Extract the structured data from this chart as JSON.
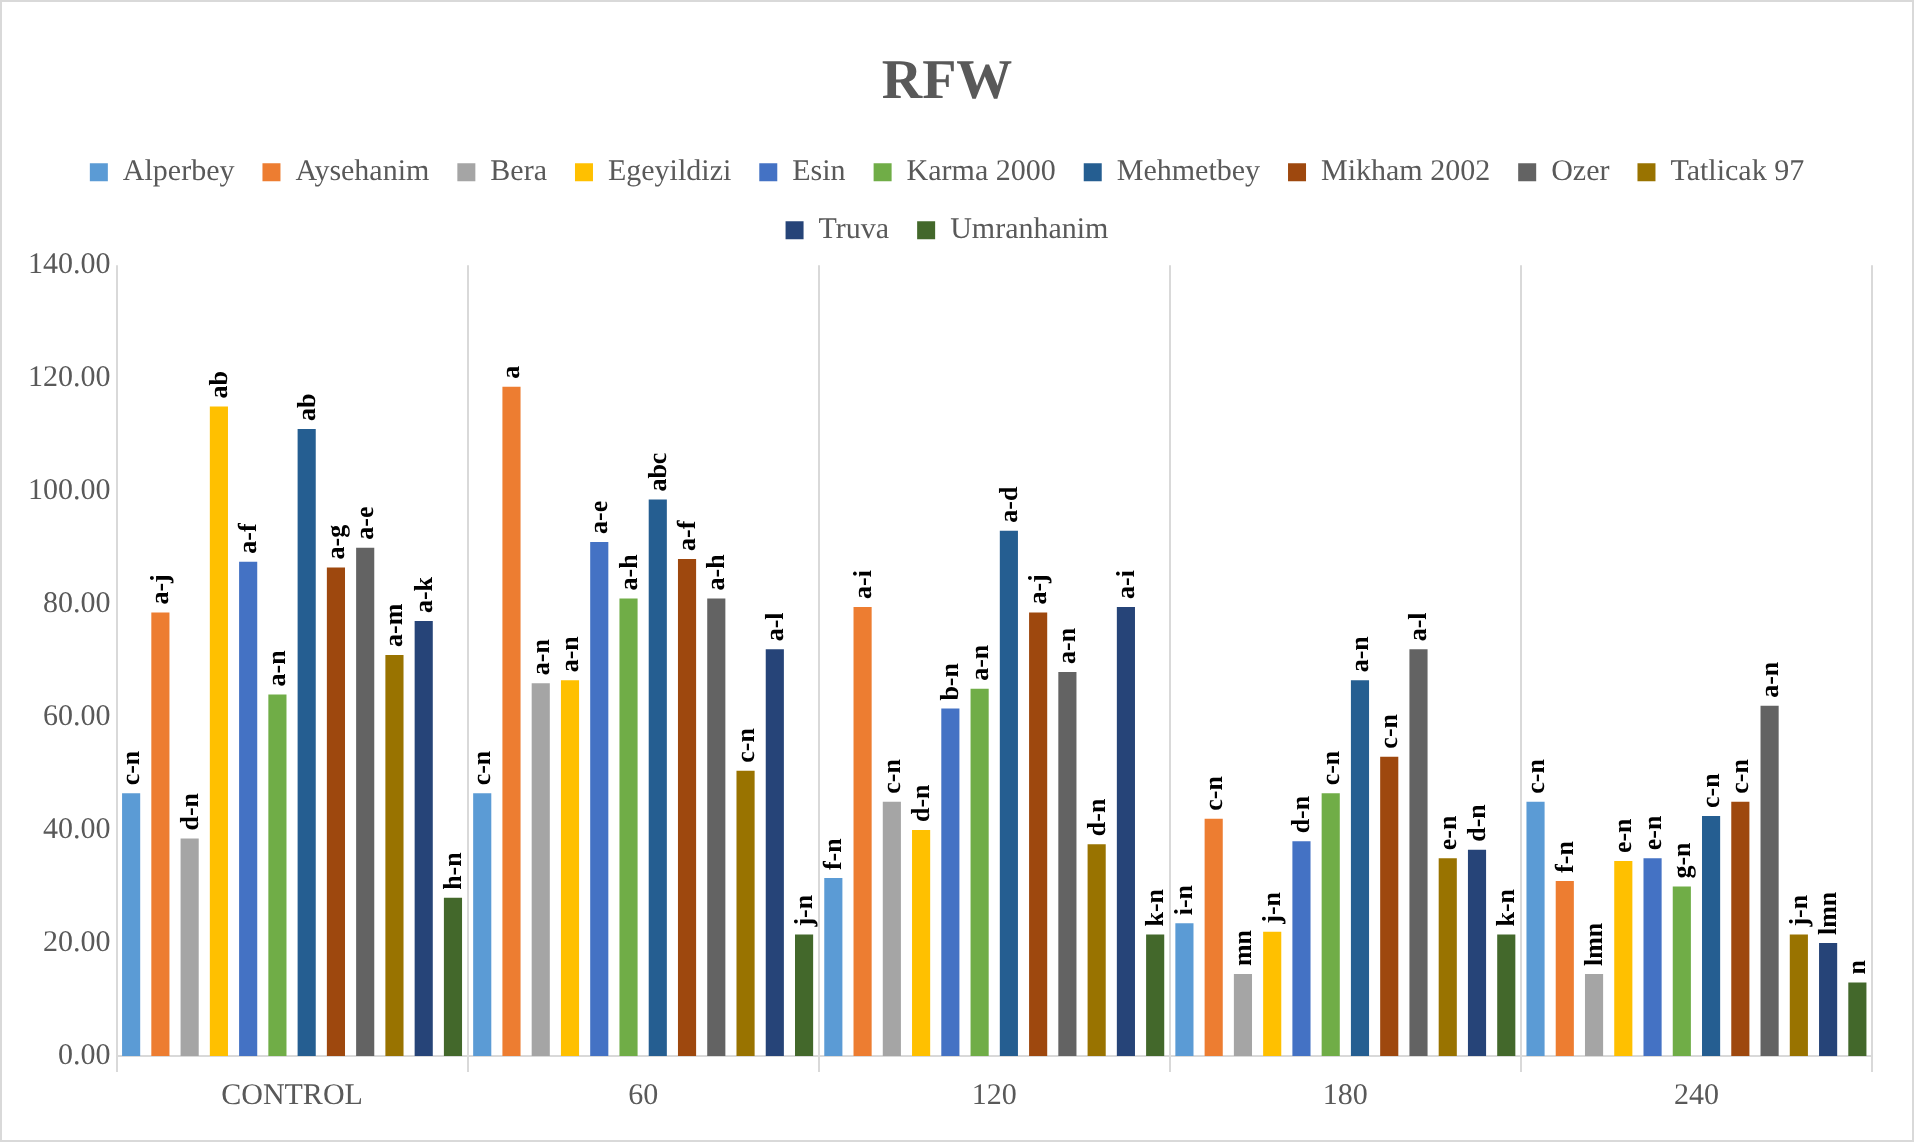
{
  "chart_data": {
    "type": "bar",
    "title": "RFW",
    "categories": [
      "CONTROL",
      "60",
      "120",
      "180",
      "240"
    ],
    "ylim": [
      0,
      140
    ],
    "yticks": [
      {
        "value": 0,
        "label": "0.00"
      },
      {
        "value": 20,
        "label": "20.00"
      },
      {
        "value": 40,
        "label": "40.00"
      },
      {
        "value": 60,
        "label": "60.00"
      },
      {
        "value": 80,
        "label": "80.00"
      },
      {
        "value": 100,
        "label": "100.00"
      },
      {
        "value": 120,
        "label": "120.00"
      },
      {
        "value": 140,
        "label": "140.00"
      }
    ],
    "grid": "x",
    "legend": "top",
    "series": [
      {
        "name": "Alperbey",
        "color": "#5b9bd5",
        "values": [
          46.5,
          46.5,
          31.5,
          23.5,
          45
        ],
        "value_labels": [
          "c-n",
          "c-n",
          "f-n",
          "i-n",
          "c-n"
        ]
      },
      {
        "name": "Aysehanim",
        "color": "#ed7d31",
        "values": [
          78.5,
          118.5,
          79.5,
          42,
          31
        ],
        "value_labels": [
          "a-j",
          "a",
          "a-i",
          "c-n",
          "f-n"
        ]
      },
      {
        "name": "Bera",
        "color": "#a5a5a5",
        "values": [
          38.5,
          66,
          45,
          14.5,
          14.5
        ],
        "value_labels": [
          "d-n",
          "a-n",
          "c-n",
          "mn",
          "lmn"
        ]
      },
      {
        "name": "Egeyildizi",
        "color": "#ffc000",
        "values": [
          115,
          66.5,
          40,
          22,
          34.5
        ],
        "value_labels": [
          "ab",
          "a-n",
          "d-n",
          "j-n",
          "e-n"
        ]
      },
      {
        "name": "Esin",
        "color": "#4472c4",
        "values": [
          87.5,
          91,
          61.5,
          38,
          35
        ],
        "value_labels": [
          "a-f",
          "a-e",
          "b-n",
          "d-n",
          "e-n"
        ]
      },
      {
        "name": "Karma 2000",
        "color": "#70ad47",
        "values": [
          64,
          81,
          65,
          46.5,
          30
        ],
        "value_labels": [
          "a-n",
          "a-h",
          "a-n",
          "c-n",
          "g-n"
        ]
      },
      {
        "name": "Mehmetbey",
        "color": "#255e91",
        "values": [
          111,
          98.5,
          93,
          66.5,
          42.5
        ],
        "value_labels": [
          "ab",
          "abc",
          "a-d",
          "a-n",
          "c-n"
        ]
      },
      {
        "name": "Mikham 2002",
        "color": "#9e480e",
        "values": [
          86.5,
          88,
          78.5,
          53,
          45
        ],
        "value_labels": [
          "a-g",
          "a-f",
          "a-j",
          "c-n",
          "c-n"
        ]
      },
      {
        "name": "Ozer",
        "color": "#636363",
        "values": [
          90,
          81,
          68,
          72,
          62
        ],
        "value_labels": [
          "a-e",
          "a-h",
          "a-n",
          "a-l",
          "a-n"
        ]
      },
      {
        "name": "Tatlicak 97",
        "color": "#997300",
        "values": [
          71,
          50.5,
          37.5,
          35,
          21.5
        ],
        "value_labels": [
          "a-m",
          "c-n",
          "d-n",
          "e-n",
          "j-n"
        ]
      },
      {
        "name": "Truva",
        "color": "#264478",
        "values": [
          77,
          72,
          79.5,
          36.5,
          20
        ],
        "value_labels": [
          "a-k",
          "a-l",
          "a-i",
          "d-n",
          "lmn"
        ]
      },
      {
        "name": "Umranhanim",
        "color": "#43682b",
        "values": [
          28,
          21.5,
          21.5,
          21.5,
          13
        ],
        "value_labels": [
          "h-n",
          "j-n",
          "k-n",
          "k-n",
          "n"
        ]
      }
    ]
  }
}
